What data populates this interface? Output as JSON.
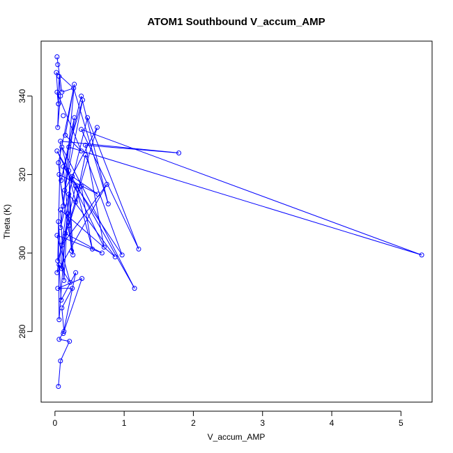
{
  "chart_data": {
    "type": "line",
    "title": "ATOM1 Southbound V_accum_AMP",
    "xlabel": "V_accum_AMP",
    "ylabel": "Theta (K)",
    "xlim": [
      -0.2,
      5.45
    ],
    "ylim": [
      262,
      354
    ],
    "xticks": [
      0,
      1,
      2,
      3,
      4,
      5
    ],
    "yticks": [
      280,
      300,
      320,
      340
    ],
    "xtick_labels": [
      "0",
      "1",
      "2",
      "3",
      "4",
      "5"
    ],
    "ytick_labels": [
      "280",
      "300",
      "320",
      "340"
    ],
    "grid": false,
    "series_color": "#0000ff",
    "marker": "open-circle",
    "series": [
      {
        "points": [
          [
            0.03,
            350.0
          ],
          [
            0.04,
            348.0
          ],
          [
            0.02,
            346.0
          ],
          [
            0.06,
            345.0
          ],
          [
            0.03,
            341.0
          ],
          [
            0.1,
            341.0
          ],
          [
            0.05,
            338.0
          ],
          [
            0.28,
            343.0
          ],
          [
            0.27,
            342.0
          ],
          [
            0.08,
            340.0
          ],
          [
            0.38,
            340.0
          ],
          [
            0.4,
            339.0
          ],
          [
            0.05,
            338.0
          ],
          [
            0.12,
            335.0
          ],
          [
            0.28,
            334.5
          ],
          [
            0.47,
            334.5
          ],
          [
            0.04,
            332.0
          ],
          [
            0.38,
            331.5
          ],
          [
            0.61,
            332.0
          ],
          [
            0.15,
            330.0
          ],
          [
            0.08,
            328.5
          ],
          [
            0.2,
            327.0
          ],
          [
            0.44,
            327.5
          ],
          [
            0.03,
            326.0
          ],
          [
            0.1,
            327.0
          ],
          [
            0.38,
            326.0
          ],
          [
            0.44,
            325.0
          ],
          [
            1.79,
            325.5
          ],
          [
            0.05,
            323.0
          ],
          [
            0.12,
            322.0
          ],
          [
            0.2,
            321.0
          ],
          [
            0.06,
            320.0
          ],
          [
            0.25,
            319.5
          ],
          [
            0.09,
            318.5
          ],
          [
            0.75,
            317.5
          ],
          [
            0.3,
            317.0
          ],
          [
            0.38,
            317.0
          ],
          [
            0.14,
            316.0
          ],
          [
            0.2,
            315.0
          ],
          [
            0.62,
            315.0
          ],
          [
            0.3,
            313.0
          ],
          [
            0.77,
            312.5
          ],
          [
            0.12,
            312.0
          ],
          [
            0.08,
            311.0
          ],
          [
            0.18,
            310.0
          ],
          [
            0.05,
            308.0
          ],
          [
            0.2,
            307.0
          ],
          [
            0.08,
            306.5
          ],
          [
            0.15,
            305.0
          ],
          [
            0.03,
            304.5
          ],
          [
            0.1,
            302.0
          ],
          [
            0.71,
            301.5
          ],
          [
            0.54,
            301.0
          ],
          [
            1.21,
            301.0
          ],
          [
            0.24,
            300.5
          ],
          [
            0.68,
            300.0
          ],
          [
            0.97,
            299.5
          ],
          [
            5.3,
            299.5
          ],
          [
            0.26,
            299.5
          ],
          [
            0.87,
            299.0
          ],
          [
            0.04,
            298.0
          ],
          [
            0.06,
            297.0
          ],
          [
            0.1,
            296.0
          ],
          [
            0.3,
            295.0
          ],
          [
            0.03,
            295.0
          ],
          [
            0.39,
            293.5
          ],
          [
            0.13,
            293.0
          ],
          [
            0.22,
            292.5
          ],
          [
            0.04,
            291.0
          ],
          [
            0.25,
            291.0
          ],
          [
            1.15,
            291.0
          ],
          [
            0.09,
            288.0
          ],
          [
            0.1,
            286.0
          ],
          [
            0.06,
            283.0
          ],
          [
            0.13,
            280.0
          ],
          [
            0.12,
            279.5
          ],
          [
            0.06,
            278.0
          ],
          [
            0.21,
            277.5
          ],
          [
            0.08,
            272.5
          ],
          [
            0.05,
            266.0
          ]
        ],
        "path_order": [
          0,
          5,
          8,
          2,
          12,
          3,
          9,
          16,
          6,
          4,
          25,
          19,
          7,
          42,
          28,
          8,
          41,
          10,
          33,
          14,
          47,
          15,
          53,
          17,
          57,
          21,
          11,
          37,
          18,
          60,
          20,
          27,
          22,
          51,
          23,
          70,
          24,
          40,
          26,
          56,
          29,
          54,
          30,
          58,
          31,
          39,
          32,
          64,
          34,
          50,
          35,
          52,
          36,
          46,
          38,
          59,
          43,
          66,
          44,
          62,
          45,
          73,
          48,
          55,
          49,
          67,
          61,
          71,
          63,
          75,
          65,
          68,
          69,
          72,
          74,
          76,
          77,
          78,
          79
        ]
      }
    ]
  }
}
